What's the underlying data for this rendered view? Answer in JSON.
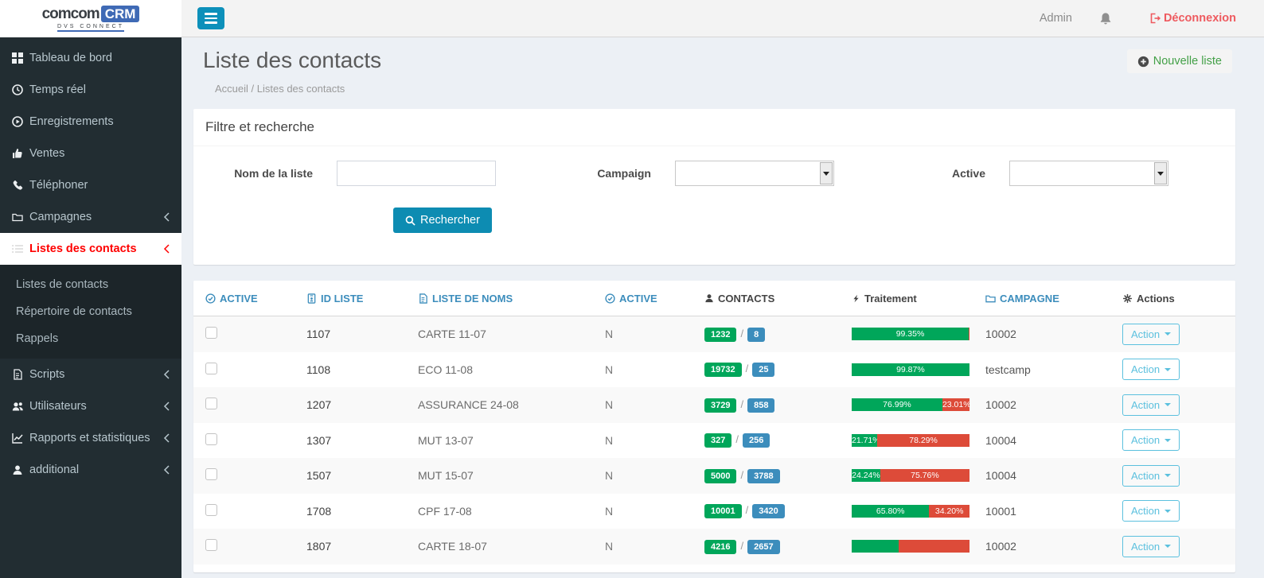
{
  "brand": {
    "name": "comcom",
    "suffix": "CRM",
    "tagline": "DVS CONNECT"
  },
  "topbar": {
    "user_label": "Admin",
    "logout_label": "Déconnexion"
  },
  "sidebar": {
    "items": [
      {
        "label": "Tableau de bord",
        "icon": "grid"
      },
      {
        "label": "Temps réel",
        "icon": "clock"
      },
      {
        "label": "Enregistrements",
        "icon": "play-circle"
      },
      {
        "label": "Ventes",
        "icon": "thumbs-up"
      },
      {
        "label": "Téléphoner",
        "icon": "phone"
      },
      {
        "label": "Campagnes",
        "icon": "folder-open",
        "expandable": true
      },
      {
        "label": "Listes des contacts",
        "icon": "list",
        "expandable": true,
        "active": true
      },
      {
        "label": "Scripts",
        "icon": "file",
        "expandable": true
      },
      {
        "label": "Utilisateurs",
        "icon": "users",
        "expandable": true
      },
      {
        "label": "Rapports et statistiques",
        "icon": "chart-line",
        "expandable": true
      },
      {
        "label": "additional",
        "icon": "user",
        "expandable": true
      }
    ],
    "submenu": [
      {
        "label": "Listes de contacts"
      },
      {
        "label": "Répertoire de contacts"
      },
      {
        "label": "Rappels"
      }
    ]
  },
  "page": {
    "title": "Liste des contacts",
    "breadcrumb": "Accueil / Listes des contacts",
    "new_list_label": "Nouvelle liste"
  },
  "filter": {
    "title": "Filtre et recherche",
    "name_label": "Nom de la liste",
    "name_value": "",
    "campaign_label": "Campaign",
    "campaign_value": "",
    "active_label": "Active",
    "active_value": "",
    "search_label": "Rechercher"
  },
  "table": {
    "action_label": "Action",
    "separator": "/",
    "headers": [
      {
        "label": "ACTIVE",
        "icon": "check-circle"
      },
      {
        "label": "ID LISTE",
        "icon": "id-card"
      },
      {
        "label": "LISTE DE NOMS",
        "icon": "file-text"
      },
      {
        "label": "ACTIVE",
        "icon": "check-circle"
      },
      {
        "label": "CONTACTS",
        "icon": "user"
      },
      {
        "label": "Traitement",
        "icon": "bolt"
      },
      {
        "label": "CAMPAGNE",
        "icon": "folder"
      },
      {
        "label": "Actions",
        "icon": "gears"
      }
    ],
    "rows": [
      {
        "id": "1107",
        "name": "CARTE 11-07",
        "active": "N",
        "contacts_green": "1232",
        "contacts_blue": "8",
        "pct_green": 99.35,
        "pct_red": 0.65,
        "green_label": "99.35%",
        "red_label": "",
        "campagne": "10002"
      },
      {
        "id": "1108",
        "name": "ECO 11-08",
        "active": "N",
        "contacts_green": "19732",
        "contacts_blue": "25",
        "pct_green": 99.87,
        "pct_red": 0.13,
        "green_label": "99.87%",
        "red_label": "",
        "campagne": "testcamp"
      },
      {
        "id": "1207",
        "name": "ASSURANCE 24-08",
        "active": "N",
        "contacts_green": "3729",
        "contacts_blue": "858",
        "pct_green": 76.99,
        "pct_red": 23.01,
        "green_label": "76.99%",
        "red_label": "23.01%",
        "campagne": "10002"
      },
      {
        "id": "1307",
        "name": "MUT 13-07",
        "active": "N",
        "contacts_green": "327",
        "contacts_blue": "256",
        "pct_green": 21.71,
        "pct_red": 78.29,
        "green_label": "21.71%",
        "red_label": "78.29%",
        "campagne": "10004"
      },
      {
        "id": "1507",
        "name": "MUT 15-07",
        "active": "N",
        "contacts_green": "5000",
        "contacts_blue": "3788",
        "pct_green": 24.24,
        "pct_red": 75.76,
        "green_label": "24.24%",
        "red_label": "75.76%",
        "campagne": "10004"
      },
      {
        "id": "1708",
        "name": "CPF 17-08",
        "active": "N",
        "contacts_green": "10001",
        "contacts_blue": "3420",
        "pct_green": 65.8,
        "pct_red": 34.2,
        "green_label": "65.80%",
        "red_label": "34.20%",
        "campagne": "10001"
      },
      {
        "id": "1807",
        "name": "CARTE 18-07",
        "active": "N",
        "contacts_green": "4216",
        "contacts_blue": "2657",
        "pct_green": 40,
        "pct_red": 60,
        "green_label": "",
        "red_label": "",
        "campagne": "10002"
      }
    ]
  },
  "colors": {
    "link_blue": "#3c8dbc",
    "green": "#00a65a",
    "red": "#dd4b39",
    "teal_button": "#0d90ba",
    "logout_red": "#ee5a5f",
    "new_list_green": "#43a047",
    "action_blue": "#5bc0de",
    "sidebar_bg": "#222d32",
    "active_item_red": "#ff0000",
    "content_bg": "#ecf0f5"
  },
  "icons": {
    "menu": "hamburger-bars",
    "notifications": "bell",
    "logout": "sign-out",
    "new_list": "plus-circle",
    "search": "magnifier",
    "action_caret": "caret-down"
  }
}
